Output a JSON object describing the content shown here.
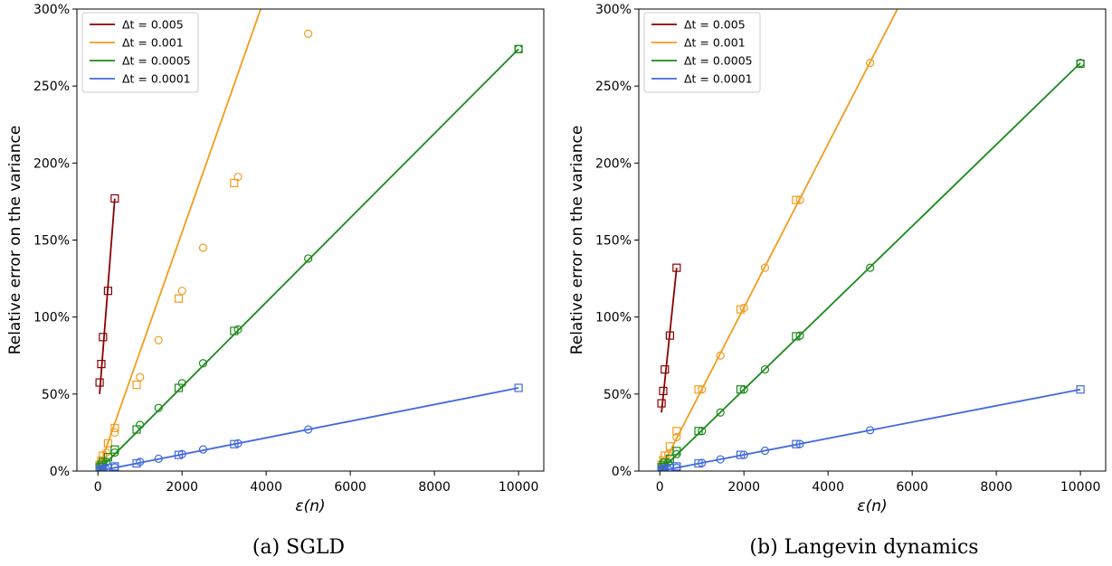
{
  "chart_data": [
    {
      "type": "line",
      "caption": "(a) SGLD",
      "xlabel": "ε(n)",
      "ylabel": "Relative error on the variance",
      "xlim": [
        -500,
        10600
      ],
      "ylim": [
        0,
        300
      ],
      "xticks": [
        0,
        2000,
        4000,
        6000,
        8000,
        10000
      ],
      "xtick_labels": [
        "0",
        "2000",
        "4000",
        "6000",
        "8000",
        "10000"
      ],
      "yticks": [
        0,
        50,
        100,
        150,
        200,
        250,
        300
      ],
      "ytick_labels": [
        "0%",
        "50%",
        "100%",
        "150%",
        "200%",
        "250%",
        "300%"
      ],
      "legend_position": "top-left",
      "series": [
        {
          "name": "Δt = 0.005",
          "color": "#8b0000",
          "line_x": [
            40,
            400
          ],
          "line_y": [
            50,
            177
          ],
          "circles": [],
          "squares": [
            [
              40,
              57.5
            ],
            [
              80,
              69.5
            ],
            [
              120,
              87
            ],
            [
              240,
              117
            ],
            [
              400,
              177
            ]
          ]
        },
        {
          "name": "Δt = 0.001",
          "color": "#f39c1d",
          "line_x": [
            0,
            3870
          ],
          "line_y": [
            0,
            300
          ],
          "circles": [
            [
              40,
              3
            ],
            [
              100,
              6
            ],
            [
              200,
              12
            ],
            [
              400,
              25
            ],
            [
              1000,
              61
            ],
            [
              1440,
              85
            ],
            [
              2000,
              117
            ],
            [
              2500,
              145
            ],
            [
              3330,
              191
            ],
            [
              5000,
              284
            ]
          ],
          "squares": [
            [
              40,
              4
            ],
            [
              80,
              7
            ],
            [
              120,
              10
            ],
            [
              240,
              18
            ],
            [
              400,
              28
            ],
            [
              920,
              56
            ],
            [
              1920,
              112
            ],
            [
              3240,
              187
            ]
          ]
        },
        {
          "name": "Δt = 0.0005",
          "color": "#1a8a1a",
          "line_x": [
            0,
            10000
          ],
          "line_y": [
            0,
            274
          ],
          "circles": [
            [
              40,
              1.5
            ],
            [
              100,
              3
            ],
            [
              200,
              6
            ],
            [
              400,
              12
            ],
            [
              1000,
              30
            ],
            [
              1440,
              41
            ],
            [
              2000,
              57
            ],
            [
              2500,
              70
            ],
            [
              3330,
              92
            ],
            [
              5000,
              138
            ],
            [
              10000,
              274
            ]
          ],
          "squares": [
            [
              40,
              2.5
            ],
            [
              80,
              4
            ],
            [
              120,
              6
            ],
            [
              240,
              9
            ],
            [
              400,
              14
            ],
            [
              920,
              27
            ],
            [
              1920,
              54
            ],
            [
              3240,
              91
            ],
            [
              10000,
              274
            ]
          ]
        },
        {
          "name": "Δt = 0.0001",
          "color": "#4169e1",
          "line_x": [
            0,
            10000
          ],
          "line_y": [
            0,
            54
          ],
          "circles": [
            [
              40,
              0.3
            ],
            [
              100,
              0.6
            ],
            [
              200,
              1.2
            ],
            [
              400,
              2.3
            ],
            [
              1000,
              6
            ],
            [
              1440,
              8
            ],
            [
              2000,
              11
            ],
            [
              2500,
              14
            ],
            [
              3330,
              18
            ],
            [
              5000,
              27
            ]
          ],
          "squares": [
            [
              40,
              0.5
            ],
            [
              80,
              1
            ],
            [
              120,
              1.5
            ],
            [
              240,
              2
            ],
            [
              400,
              3
            ],
            [
              920,
              5
            ],
            [
              1920,
              10.5
            ],
            [
              3240,
              17.5
            ],
            [
              10000,
              54
            ]
          ]
        }
      ]
    },
    {
      "type": "line",
      "caption": "(b) Langevin dynamics",
      "xlabel": "ε(n)",
      "ylabel": "Relative error on the variance",
      "xlim": [
        -500,
        10600
      ],
      "ylim": [
        0,
        300
      ],
      "xticks": [
        0,
        2000,
        4000,
        6000,
        8000,
        10000
      ],
      "xtick_labels": [
        "0",
        "2000",
        "4000",
        "6000",
        "8000",
        "10000"
      ],
      "yticks": [
        0,
        50,
        100,
        150,
        200,
        250,
        300
      ],
      "ytick_labels": [
        "0%",
        "50%",
        "100%",
        "150%",
        "200%",
        "250%",
        "300%"
      ],
      "legend_position": "top-left",
      "series": [
        {
          "name": "Δt = 0.005",
          "color": "#8b0000",
          "line_x": [
            40,
            400
          ],
          "line_y": [
            38,
            132
          ],
          "circles": [],
          "squares": [
            [
              40,
              44
            ],
            [
              80,
              52
            ],
            [
              120,
              66
            ],
            [
              240,
              88
            ],
            [
              400,
              132
            ]
          ]
        },
        {
          "name": "Δt = 0.001",
          "color": "#f39c1d",
          "line_x": [
            0,
            5650
          ],
          "line_y": [
            0,
            300
          ],
          "circles": [
            [
              40,
              3
            ],
            [
              100,
              6
            ],
            [
              200,
              11
            ],
            [
              400,
              22
            ],
            [
              1000,
              53
            ],
            [
              1440,
              75
            ],
            [
              2000,
              106
            ],
            [
              2500,
              132
            ],
            [
              3330,
              176
            ],
            [
              5000,
              265
            ]
          ],
          "squares": [
            [
              40,
              4
            ],
            [
              80,
              7
            ],
            [
              120,
              10
            ],
            [
              240,
              16
            ],
            [
              400,
              26
            ],
            [
              920,
              53
            ],
            [
              1920,
              105
            ],
            [
              3240,
              176
            ]
          ]
        },
        {
          "name": "Δt = 0.0005",
          "color": "#1a8a1a",
          "line_x": [
            0,
            10000
          ],
          "line_y": [
            0,
            265
          ],
          "circles": [
            [
              40,
              1.5
            ],
            [
              100,
              3
            ],
            [
              200,
              5.5
            ],
            [
              400,
              11
            ],
            [
              1000,
              26
            ],
            [
              1440,
              38
            ],
            [
              2000,
              53
            ],
            [
              2500,
              66
            ],
            [
              3330,
              88
            ],
            [
              5000,
              132
            ],
            [
              10000,
              265
            ]
          ],
          "squares": [
            [
              40,
              2.5
            ],
            [
              80,
              4
            ],
            [
              120,
              5.5
            ],
            [
              240,
              8
            ],
            [
              400,
              13
            ],
            [
              920,
              26
            ],
            [
              1920,
              53
            ],
            [
              3240,
              87.5
            ],
            [
              10000,
              264.5
            ]
          ]
        },
        {
          "name": "Δt = 0.0001",
          "color": "#4169e1",
          "line_x": [
            0,
            10000
          ],
          "line_y": [
            0,
            53
          ],
          "circles": [
            [
              40,
              0.3
            ],
            [
              100,
              0.6
            ],
            [
              200,
              1.1
            ],
            [
              400,
              2.2
            ],
            [
              1000,
              5.3
            ],
            [
              1440,
              7.6
            ],
            [
              2000,
              10.6
            ],
            [
              2500,
              13.2
            ],
            [
              3330,
              17.6
            ],
            [
              5000,
              26.5
            ]
          ],
          "squares": [
            [
              40,
              0.5
            ],
            [
              80,
              1
            ],
            [
              120,
              1.5
            ],
            [
              240,
              2
            ],
            [
              400,
              3
            ],
            [
              920,
              5
            ],
            [
              1920,
              10.5
            ],
            [
              3240,
              17.5
            ],
            [
              10000,
              53
            ]
          ]
        }
      ]
    }
  ]
}
